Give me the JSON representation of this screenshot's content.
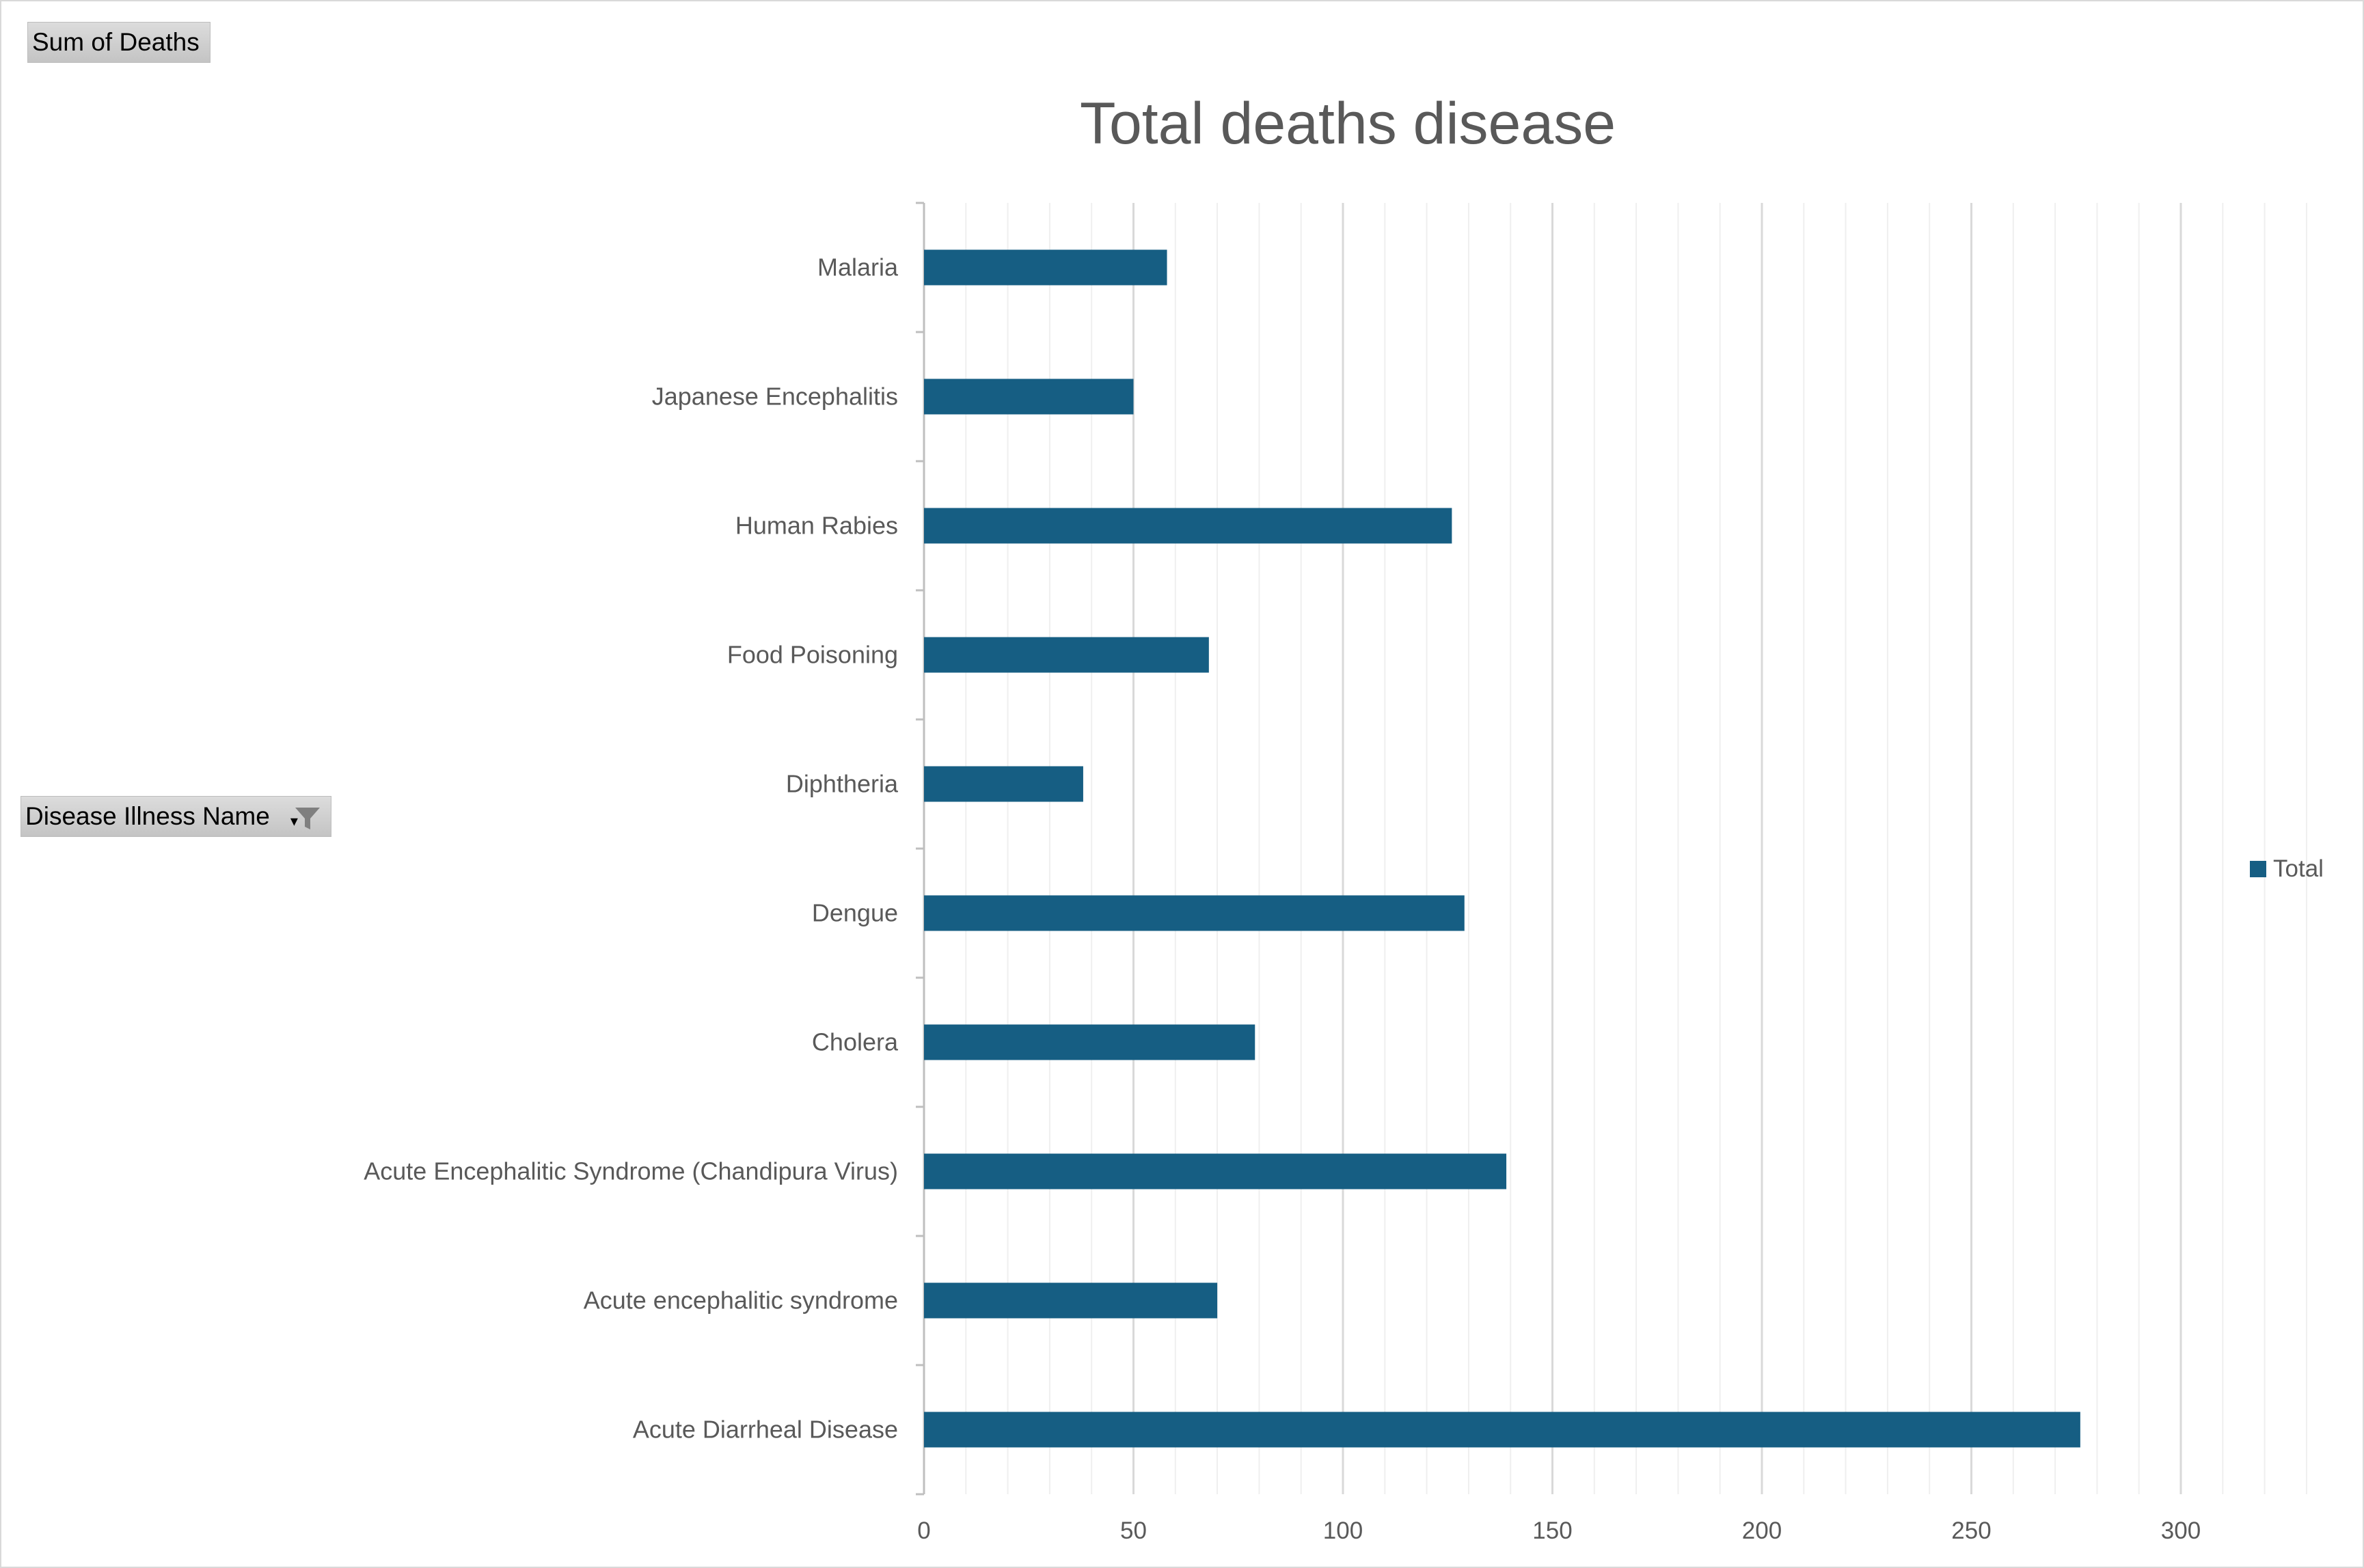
{
  "pivot": {
    "value_field": "Sum of Deaths",
    "axis_field": "Disease Illness Name"
  },
  "colors": {
    "bar": "#165e83",
    "text": "#595959"
  },
  "icons": {
    "filter": "funnel-filter-icon",
    "dropdown": "chevron-down-icon"
  },
  "chart_data": {
    "type": "bar",
    "orientation": "horizontal",
    "title": "Total deaths disease",
    "categories": [
      "Malaria",
      "Japanese Encephalitis",
      "Human Rabies",
      "Food Poisoning",
      "Diphtheria",
      "Dengue",
      "Cholera",
      "Acute Encephalitic Syndrome (Chandipura Virus)",
      "Acute encephalitic syndrome",
      "Acute Diarrheal Disease"
    ],
    "series": [
      {
        "name": "Total",
        "values": [
          58,
          50,
          126,
          68,
          38,
          129,
          79,
          139,
          70,
          276
        ]
      }
    ],
    "xlim": [
      0,
      330
    ],
    "xticks": [
      "0",
      "50",
      "100",
      "150",
      "200",
      "250",
      "300"
    ],
    "grid": true,
    "legend": "right"
  }
}
